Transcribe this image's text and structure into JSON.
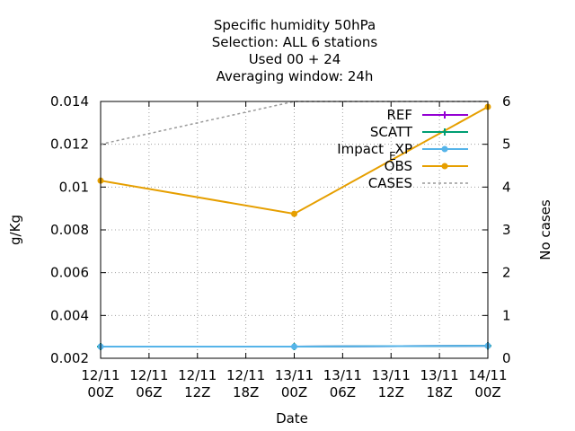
{
  "chart_data": {
    "type": "line",
    "title_lines": [
      "Specific humidity 50hPa",
      "Selection: ALL      6 stations",
      "Used  00 + 24",
      "Averaging window: 24h"
    ],
    "xlabel": "Date",
    "ylabel": "g/Kg",
    "y2label": "No cases",
    "x_ticks": [
      [
        "12/11",
        "00Z"
      ],
      [
        "12/11",
        "06Z"
      ],
      [
        "12/11",
        "12Z"
      ],
      [
        "12/11",
        "18Z"
      ],
      [
        "13/11",
        "00Z"
      ],
      [
        "13/11",
        "06Z"
      ],
      [
        "13/11",
        "12Z"
      ],
      [
        "13/11",
        "18Z"
      ],
      [
        "14/11",
        "00Z"
      ]
    ],
    "y_ticks": [
      "0.002",
      "0.004",
      "0.006",
      "0.008",
      "0.01",
      "0.012",
      "0.014"
    ],
    "y2_ticks": [
      "0",
      "1",
      "2",
      "3",
      "4",
      "5",
      "6"
    ],
    "ylim": [
      0.002,
      0.014
    ],
    "y2lim": [
      0,
      6
    ],
    "grid": true,
    "legend_position": "top-right",
    "series": [
      {
        "name": "REF",
        "axis": "y",
        "color": "#9400d3",
        "marker": "plus",
        "dash": false,
        "x": [
          0,
          24,
          48
        ],
        "values": [
          0.002545,
          0.002545,
          0.00258
        ]
      },
      {
        "name": "SCATT",
        "axis": "y",
        "color": "#009e73",
        "marker": "plus",
        "dash": false,
        "x": [
          0,
          24,
          48
        ],
        "values": [
          0.002545,
          0.002545,
          0.00258
        ]
      },
      {
        "name": "Impact_EXP",
        "label_main": "Impact",
        "label_sub": "E",
        "label_tail": "XP",
        "axis": "y",
        "color": "#56b4e9",
        "marker": "dot",
        "dash": false,
        "x": [
          0,
          24,
          48
        ],
        "values": [
          0.002545,
          0.002545,
          0.00258
        ]
      },
      {
        "name": "OBS",
        "axis": "y",
        "color": "#e69f00",
        "marker": "dot",
        "dash": false,
        "x": [
          0,
          24,
          48
        ],
        "values": [
          0.0103,
          0.00875,
          0.01375
        ]
      },
      {
        "name": "CASES",
        "axis": "y2",
        "color": "#999999",
        "marker": "none",
        "dash": true,
        "x": [
          0,
          24,
          48
        ],
        "values": [
          5,
          6,
          6
        ]
      }
    ]
  }
}
